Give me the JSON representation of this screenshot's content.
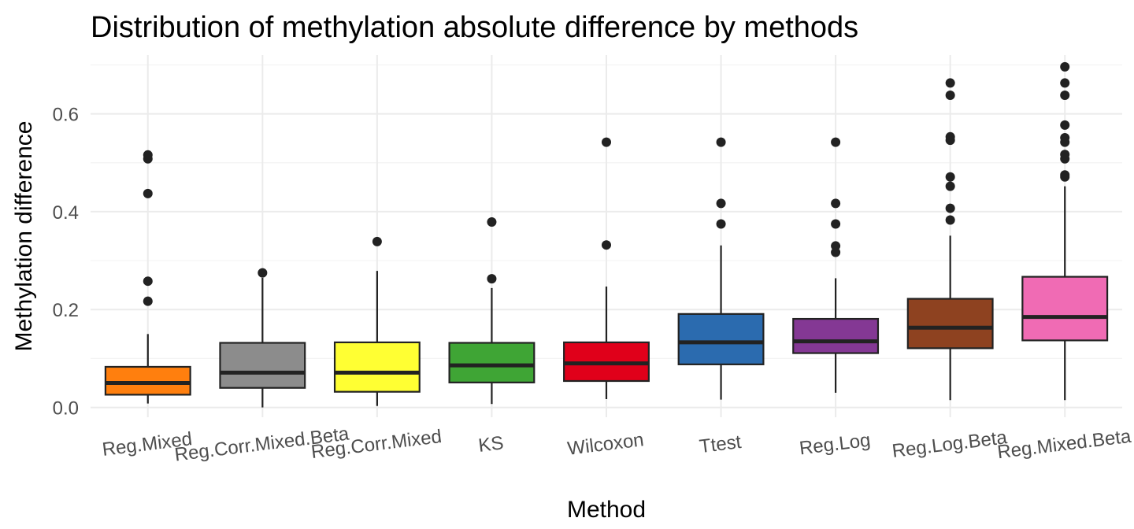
{
  "chart_data": {
    "type": "boxplot",
    "title": "Distribution of methylation absolute difference by methods",
    "xlabel": "Method",
    "ylabel": "Methylation difference",
    "ylim": [
      -0.02,
      0.72
    ],
    "yticks": [
      0.0,
      0.2,
      0.4,
      0.6
    ],
    "ytick_labels": [
      "0.0",
      "0.2",
      "0.4",
      "0.6"
    ],
    "grid": true,
    "legend": "none",
    "series": [
      {
        "category": "Reg.Mixed",
        "color": "#FF7F0E",
        "min": 0.008,
        "q1": 0.026,
        "median": 0.05,
        "q3": 0.083,
        "max": 0.15,
        "outliers": [
          0.217,
          0.258,
          0.437,
          0.508,
          0.516
        ]
      },
      {
        "category": "Reg.Corr.Mixed.Beta",
        "color": "#8C8C8C",
        "min": 0.0,
        "q1": 0.04,
        "median": 0.071,
        "q3": 0.132,
        "max": 0.265,
        "outliers": [
          0.275
        ]
      },
      {
        "category": "Reg.Corr.Mixed",
        "color": "#FFFF33",
        "min": 0.003,
        "q1": 0.032,
        "median": 0.071,
        "q3": 0.133,
        "max": 0.279,
        "outliers": [
          0.339
        ]
      },
      {
        "category": "KS",
        "color": "#3FA535",
        "min": 0.007,
        "q1": 0.051,
        "median": 0.086,
        "q3": 0.132,
        "max": 0.244,
        "outliers": [
          0.263,
          0.379
        ]
      },
      {
        "category": "Wilcoxon",
        "color": "#E0001A",
        "min": 0.017,
        "q1": 0.054,
        "median": 0.09,
        "q3": 0.133,
        "max": 0.247,
        "outliers": [
          0.332,
          0.542
        ]
      },
      {
        "category": "Ttest",
        "color": "#2B6BAF",
        "min": 0.016,
        "q1": 0.088,
        "median": 0.133,
        "q3": 0.191,
        "max": 0.331,
        "outliers": [
          0.375,
          0.417,
          0.542
        ]
      },
      {
        "category": "Reg.Log",
        "color": "#843894",
        "min": 0.03,
        "q1": 0.111,
        "median": 0.135,
        "q3": 0.181,
        "max": 0.264,
        "outliers": [
          0.317,
          0.33,
          0.375,
          0.417,
          0.542
        ]
      },
      {
        "category": "Reg.Log.Beta",
        "color": "#8E4220",
        "min": 0.015,
        "q1": 0.121,
        "median": 0.163,
        "q3": 0.222,
        "max": 0.351,
        "outliers": [
          0.383,
          0.407,
          0.452,
          0.471,
          0.546,
          0.553,
          0.638,
          0.663
        ]
      },
      {
        "category": "Reg.Mixed.Beta",
        "color": "#F06BB4",
        "min": 0.015,
        "q1": 0.137,
        "median": 0.185,
        "q3": 0.267,
        "max": 0.452,
        "outliers": [
          0.471,
          0.475,
          0.508,
          0.517,
          0.542,
          0.551,
          0.577,
          0.638,
          0.663,
          0.696
        ]
      }
    ]
  }
}
